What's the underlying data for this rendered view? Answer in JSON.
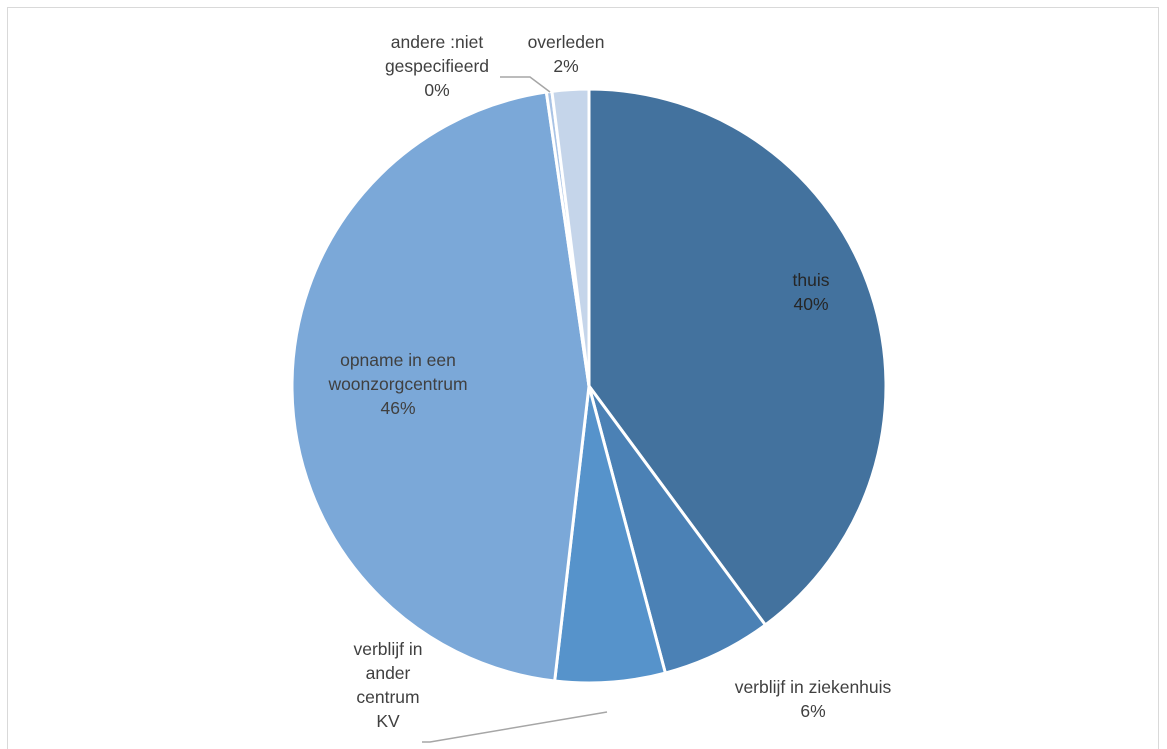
{
  "chart_data": {
    "type": "pie",
    "title": "",
    "slices": [
      {
        "label_lines": [
          "thuis"
        ],
        "value": 40,
        "value_label": "40%",
        "color": "#43729e"
      },
      {
        "label_lines": [
          "verblijf in ziekenhuis"
        ],
        "value": 6,
        "value_label": "6%",
        "color": "#4b81b5"
      },
      {
        "label_lines": [
          "verblijf in",
          "ander",
          "centrum",
          "KV"
        ],
        "value": 6,
        "value_label": "",
        "color": "#5693cb"
      },
      {
        "label_lines": [
          "opname in een",
          "woonzorgcentrum"
        ],
        "value": 46,
        "value_label": "46%",
        "color": "#7ba8d8"
      },
      {
        "label_lines": [
          "andere :niet",
          "gespecifieerd"
        ],
        "value": 0.3,
        "value_label": "0%",
        "color": "#a9c3e5"
      },
      {
        "label_lines": [
          "overleden"
        ],
        "value": 2,
        "value_label": "2%",
        "color": "#c5d5ea"
      }
    ]
  }
}
